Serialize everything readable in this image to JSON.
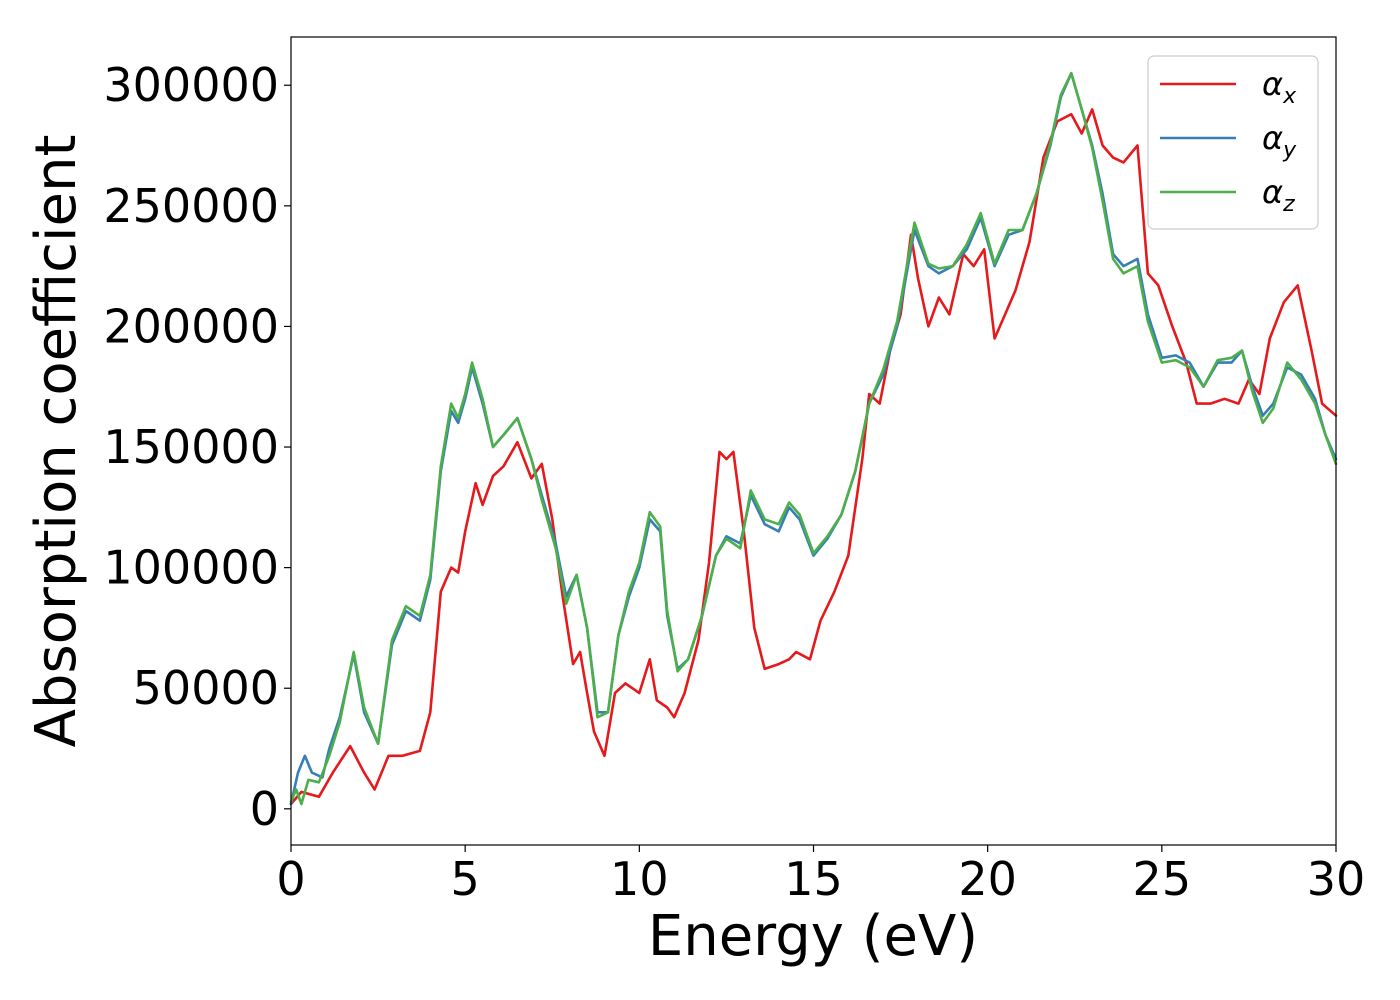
{
  "chart_data": {
    "type": "line",
    "xlabel": "Energy (eV)",
    "ylabel": "Absorption coefficient",
    "xlim": [
      0,
      30
    ],
    "ylim": [
      -15000,
      320000
    ],
    "xticks": [
      0,
      5,
      10,
      15,
      20,
      25,
      30
    ],
    "xtick_labels": [
      "0",
      "5",
      "10",
      "15",
      "20",
      "25",
      "30"
    ],
    "yticks": [
      0,
      50000,
      100000,
      150000,
      200000,
      250000,
      300000
    ],
    "ytick_labels": [
      "0",
      "50000",
      "100000",
      "150000",
      "200000",
      "250000",
      "300000"
    ],
    "grid": false,
    "legend_position": "top-right",
    "series": [
      {
        "name": "αx",
        "base": "α",
        "sub": "x",
        "color": "#e41a1c",
        "x": [
          0,
          0.3,
          0.8,
          1.2,
          1.7,
          2.1,
          2.4,
          2.8,
          3.2,
          3.7,
          4.0,
          4.3,
          4.6,
          4.8,
          5.0,
          5.3,
          5.5,
          5.8,
          6.1,
          6.5,
          6.9,
          7.2,
          7.5,
          7.8,
          8.1,
          8.3,
          8.5,
          8.7,
          9.0,
          9.3,
          9.6,
          10.0,
          10.3,
          10.5,
          10.8,
          11.0,
          11.3,
          11.7,
          12.0,
          12.3,
          12.5,
          12.7,
          13.0,
          13.3,
          13.6,
          14.0,
          14.3,
          14.5,
          14.9,
          15.2,
          15.6,
          16.0,
          16.4,
          16.6,
          16.9,
          17.2,
          17.5,
          17.8,
          18.0,
          18.3,
          18.6,
          18.9,
          19.3,
          19.6,
          19.9,
          20.2,
          20.5,
          20.8,
          21.2,
          21.6,
          22.0,
          22.4,
          22.7,
          23.0,
          23.3,
          23.6,
          23.9,
          24.3,
          24.6,
          24.9,
          25.3,
          25.7,
          26.0,
          26.4,
          26.8,
          27.2,
          27.5,
          27.8,
          28.1,
          28.5,
          28.9,
          29.3,
          29.6,
          30.0
        ],
        "y": [
          2000,
          7000,
          5000,
          15000,
          26000,
          15000,
          8000,
          22000,
          22000,
          24000,
          40000,
          90000,
          100000,
          98000,
          115000,
          135000,
          126000,
          138000,
          142000,
          152000,
          137000,
          143000,
          120000,
          88000,
          60000,
          65000,
          48000,
          32000,
          22000,
          48000,
          52000,
          48000,
          62000,
          45000,
          42000,
          38000,
          48000,
          70000,
          102000,
          148000,
          145000,
          148000,
          115000,
          75000,
          58000,
          60000,
          62000,
          65000,
          62000,
          78000,
          90000,
          105000,
          145000,
          172000,
          168000,
          190000,
          205000,
          238000,
          220000,
          200000,
          212000,
          205000,
          230000,
          225000,
          232000,
          195000,
          205000,
          215000,
          235000,
          270000,
          285000,
          288000,
          280000,
          290000,
          275000,
          270000,
          268000,
          275000,
          222000,
          217000,
          200000,
          185000,
          168000,
          168000,
          170000,
          168000,
          178000,
          172000,
          195000,
          210000,
          217000,
          190000,
          168000,
          163000
        ]
      },
      {
        "name": "αy",
        "base": "α",
        "sub": "y",
        "color": "#377eb8",
        "x": [
          0,
          0.2,
          0.4,
          0.6,
          0.9,
          1.1,
          1.4,
          1.8,
          2.1,
          2.5,
          2.9,
          3.3,
          3.7,
          4.0,
          4.3,
          4.6,
          4.8,
          5.0,
          5.2,
          5.5,
          5.8,
          6.1,
          6.5,
          6.9,
          7.2,
          7.6,
          7.9,
          8.2,
          8.5,
          8.8,
          9.1,
          9.4,
          9.7,
          10.0,
          10.3,
          10.6,
          10.8,
          11.1,
          11.4,
          11.8,
          12.2,
          12.5,
          12.9,
          13.2,
          13.6,
          14.0,
          14.3,
          14.6,
          15.0,
          15.4,
          15.8,
          16.2,
          16.6,
          17.0,
          17.4,
          17.9,
          18.3,
          18.6,
          19.0,
          19.4,
          19.8,
          20.2,
          20.6,
          21.0,
          21.4,
          21.8,
          22.1,
          22.4,
          22.7,
          23.0,
          23.3,
          23.6,
          23.9,
          24.3,
          24.6,
          25.0,
          25.4,
          25.8,
          26.2,
          26.6,
          27.0,
          27.3,
          27.6,
          27.9,
          28.2,
          28.6,
          29.0,
          29.4,
          29.7,
          30.0
        ],
        "y": [
          2000,
          15000,
          22000,
          15000,
          13000,
          25000,
          38000,
          64000,
          40000,
          27000,
          68000,
          82000,
          78000,
          95000,
          140000,
          165000,
          160000,
          170000,
          183000,
          168000,
          150000,
          155000,
          162000,
          145000,
          130000,
          110000,
          88000,
          97000,
          75000,
          40000,
          40000,
          72000,
          88000,
          100000,
          120000,
          115000,
          80000,
          58000,
          62000,
          80000,
          105000,
          113000,
          110000,
          130000,
          118000,
          115000,
          125000,
          120000,
          105000,
          112000,
          122000,
          140000,
          168000,
          180000,
          200000,
          240000,
          225000,
          222000,
          225000,
          232000,
          245000,
          225000,
          238000,
          240000,
          255000,
          275000,
          295000,
          305000,
          290000,
          275000,
          255000,
          230000,
          225000,
          228000,
          205000,
          187000,
          188000,
          185000,
          175000,
          185000,
          185000,
          190000,
          175000,
          163000,
          168000,
          183000,
          180000,
          170000,
          155000,
          145000
        ]
      },
      {
        "name": "αz",
        "base": "α",
        "sub": "z",
        "color": "#4daf4a",
        "x": [
          0,
          0.15,
          0.3,
          0.5,
          0.8,
          1.1,
          1.4,
          1.8,
          2.1,
          2.5,
          2.9,
          3.3,
          3.7,
          4.0,
          4.3,
          4.6,
          4.8,
          5.0,
          5.2,
          5.5,
          5.8,
          6.1,
          6.5,
          6.9,
          7.2,
          7.6,
          7.9,
          8.2,
          8.5,
          8.8,
          9.1,
          9.4,
          9.7,
          10.0,
          10.3,
          10.6,
          10.8,
          11.1,
          11.4,
          11.8,
          12.2,
          12.5,
          12.9,
          13.2,
          13.6,
          14.0,
          14.3,
          14.6,
          15.0,
          15.4,
          15.8,
          16.2,
          16.6,
          17.0,
          17.4,
          17.9,
          18.3,
          18.6,
          19.0,
          19.4,
          19.8,
          20.2,
          20.6,
          21.0,
          21.4,
          21.8,
          22.1,
          22.4,
          22.7,
          23.0,
          23.3,
          23.6,
          23.9,
          24.3,
          24.6,
          25.0,
          25.4,
          25.8,
          26.2,
          26.6,
          27.0,
          27.3,
          27.6,
          27.9,
          28.2,
          28.6,
          29.0,
          29.4,
          29.7,
          30.0
        ],
        "y": [
          3000,
          8000,
          2000,
          12000,
          11000,
          22000,
          36000,
          65000,
          42000,
          27000,
          70000,
          84000,
          80000,
          97000,
          142000,
          168000,
          162000,
          172000,
          185000,
          170000,
          150000,
          155000,
          162000,
          145000,
          128000,
          108000,
          85000,
          97000,
          75000,
          38000,
          40000,
          72000,
          90000,
          102000,
          123000,
          117000,
          82000,
          57000,
          62000,
          80000,
          105000,
          112000,
          108000,
          132000,
          120000,
          118000,
          127000,
          122000,
          106000,
          113000,
          122000,
          140000,
          168000,
          182000,
          202000,
          243000,
          226000,
          224000,
          225000,
          234000,
          247000,
          226000,
          240000,
          240000,
          255000,
          276000,
          296000,
          305000,
          290000,
          274000,
          252000,
          228000,
          222000,
          225000,
          202000,
          185000,
          186000,
          183000,
          175000,
          186000,
          187000,
          190000,
          173000,
          160000,
          166000,
          185000,
          178000,
          168000,
          155000,
          143000
        ]
      }
    ]
  }
}
